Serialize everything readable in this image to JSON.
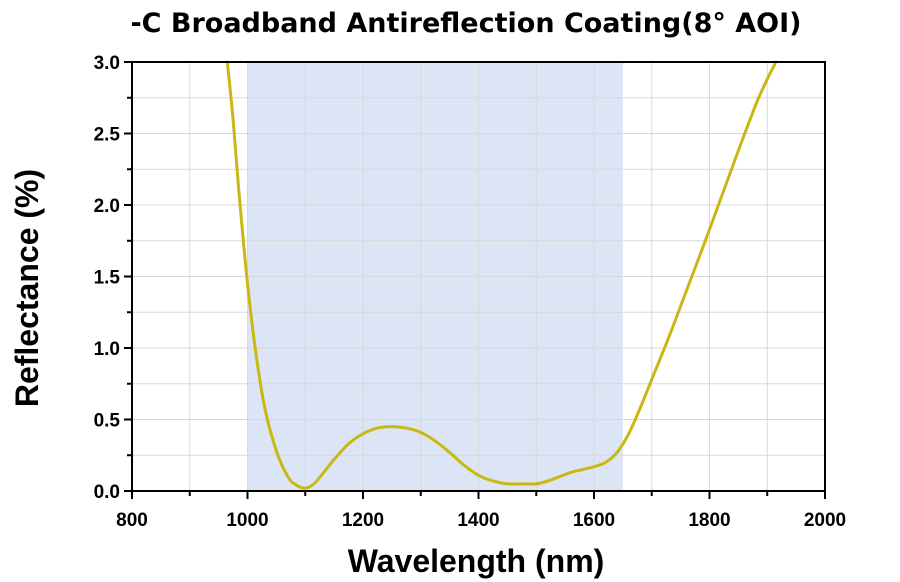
{
  "chart_data": {
    "type": "line",
    "title": "-C Broadband Antireflection Coating(8° AOI)",
    "xlabel": "Wavelength (nm)",
    "ylabel": "Reflectance (%)",
    "xlim": [
      800,
      2000
    ],
    "ylim": [
      0.0,
      3.0
    ],
    "x_ticks": [
      800,
      1000,
      1200,
      1400,
      1600,
      1800,
      2000
    ],
    "x_tick_labels": [
      "800",
      "1000",
      "1200",
      "1400",
      "1600",
      "1800",
      "2000"
    ],
    "y_ticks": [
      0.0,
      0.5,
      1.0,
      1.5,
      2.0,
      2.5,
      3.0
    ],
    "y_tick_labels": [
      "0.0",
      "0.5",
      "1.0",
      "1.5",
      "2.0",
      "2.5",
      "3.0"
    ],
    "grid": true,
    "legend": "none",
    "highlight_band": {
      "x_start": 1000,
      "x_end": 1650,
      "color": "#dce5f5"
    },
    "series": [
      {
        "color": "#c9b814",
        "x": [
          965,
          975,
          985,
          1000,
          1015,
          1030,
          1050,
          1070,
          1085,
          1100,
          1115,
          1130,
          1150,
          1175,
          1200,
          1225,
          1250,
          1275,
          1300,
          1325,
          1350,
          1375,
          1400,
          1425,
          1450,
          1475,
          1500,
          1520,
          1540,
          1560,
          1580,
          1600,
          1620,
          1640,
          1660,
          1680,
          1700,
          1730,
          1760,
          1790,
          1820,
          1850,
          1880,
          1900,
          1915
        ],
        "y": [
          3.0,
          2.6,
          2.1,
          1.45,
          0.95,
          0.58,
          0.28,
          0.1,
          0.04,
          0.02,
          0.05,
          0.12,
          0.22,
          0.33,
          0.4,
          0.44,
          0.45,
          0.44,
          0.41,
          0.35,
          0.27,
          0.18,
          0.11,
          0.07,
          0.05,
          0.05,
          0.05,
          0.07,
          0.1,
          0.13,
          0.15,
          0.17,
          0.2,
          0.27,
          0.4,
          0.58,
          0.78,
          1.08,
          1.4,
          1.72,
          2.05,
          2.38,
          2.7,
          2.88,
          3.0
        ]
      }
    ]
  }
}
